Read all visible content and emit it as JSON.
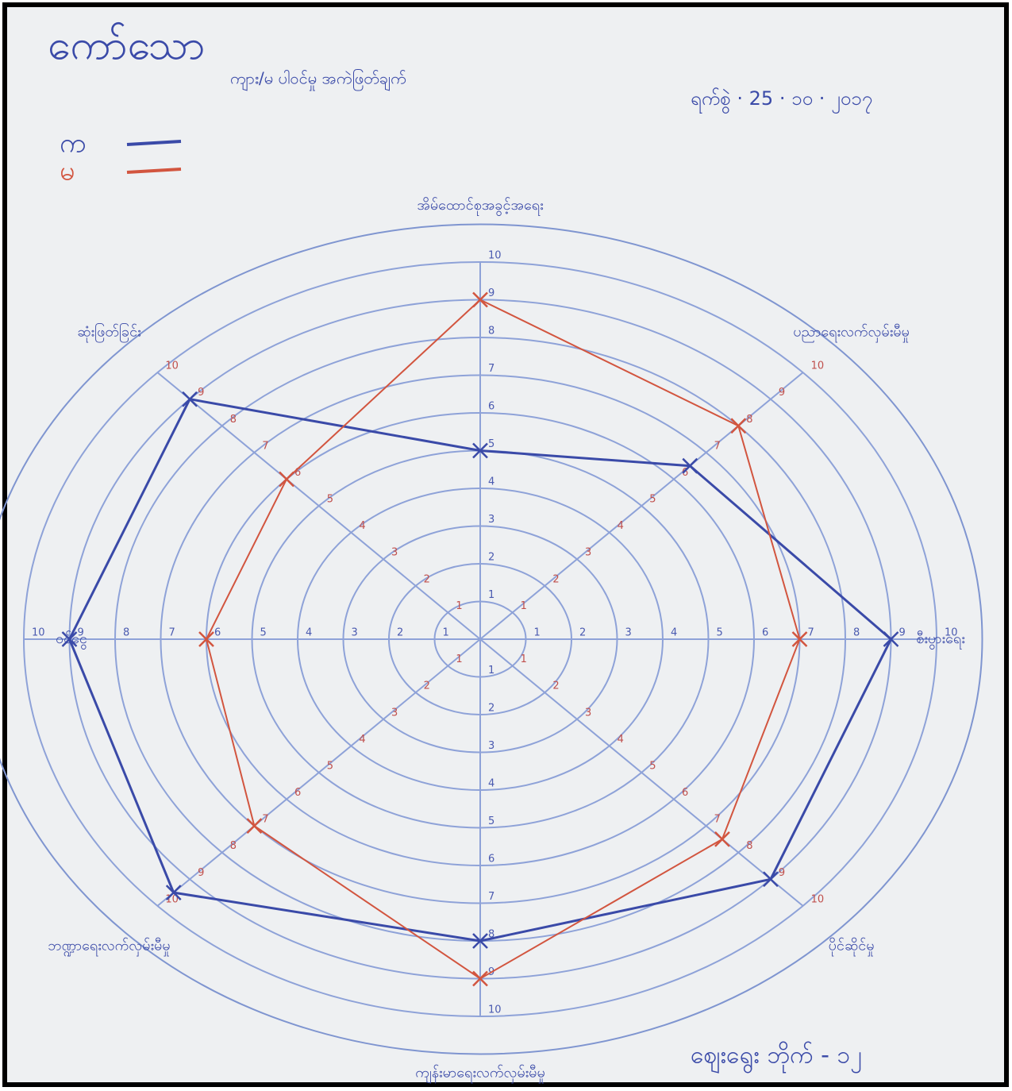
{
  "chart_data": {
    "type": "radar",
    "title": "ကော်သော",
    "subtitle": "ကျား/မ ပါဝင်မှု အကဲဖြတ်ချက်",
    "date": "ရက်စွဲ · 25 · ၁၀ · ၂၀၁၇",
    "annotation": "ဈေးရွေး ဘိုက် - ၁၂",
    "categories": [
      "အိမ်ထောင်စုအခွင့်အရေး",
      "ပညာရေးလက်လှမ်းမီမှု",
      "စီးပွားရေး",
      "ပိုင်ဆိုင်မှု",
      "ကျန်းမာရေးလက်လှမ်းမီမှု",
      "ဘဏ္ဍာရေးလက်လှမ်းမီမှု",
      "ဝင်ငွေ",
      "ဆုံးဖြတ်ခြင်း"
    ],
    "series": [
      {
        "name": "က",
        "color": "#3a4aa8",
        "values": [
          5,
          6.5,
          9,
          9,
          8,
          9.5,
          9,
          9
        ]
      },
      {
        "name": "မ",
        "color": "#d2553f",
        "values": [
          9,
          8,
          7,
          7.5,
          9,
          7,
          6,
          6
        ]
      }
    ],
    "rlim": [
      0,
      10
    ],
    "rticks": [
      1,
      2,
      3,
      4,
      5,
      6,
      7,
      8,
      9,
      10
    ]
  }
}
